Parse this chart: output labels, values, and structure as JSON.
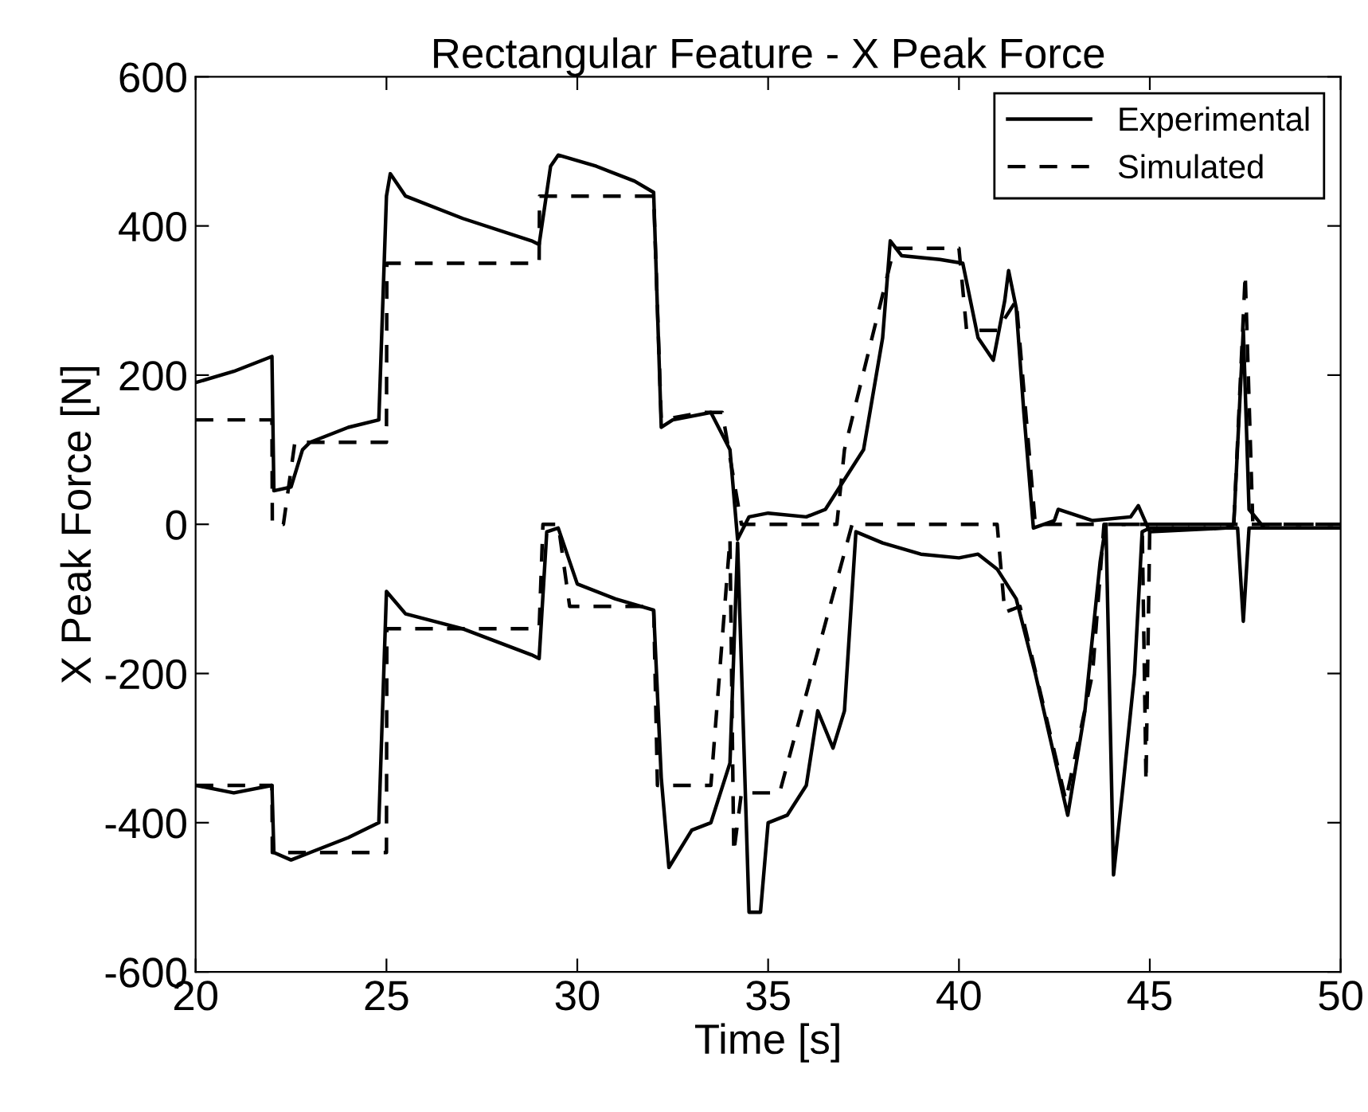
{
  "chart_data": {
    "type": "line",
    "title": "Rectangular Feature - X Peak Force",
    "xlabel": "Time [s]",
    "ylabel": "X Peak Force [N]",
    "xlim": [
      20,
      50
    ],
    "xticks": [
      20,
      25,
      30,
      35,
      40,
      45,
      50
    ],
    "ylim": [
      -600,
      600
    ],
    "yticks": [
      -600,
      -400,
      -200,
      0,
      200,
      400,
      600
    ],
    "grid": false,
    "legend": "top right",
    "marker": "none",
    "series": [
      {
        "name": "Experimental",
        "color": "#000000",
        "line_style": "solid",
        "x": [
          20,
          21,
          22,
          22.05,
          22.5,
          22.8,
          23,
          24,
          24.8,
          25.0,
          25.1,
          25.5,
          27,
          28.8,
          29.0,
          29.3,
          29.5,
          30.5,
          31.5,
          32.0,
          32.2,
          32.5,
          33.5,
          34,
          34.2,
          34.5,
          35,
          36,
          36.5,
          37,
          37.5,
          38,
          38.2,
          38.5,
          39.5,
          40.1,
          40.5,
          40.9,
          41.2,
          41.3,
          41.5,
          41.7,
          41.95,
          42.5,
          42.6,
          43.5,
          44.5,
          44.7,
          45,
          47,
          47.2,
          47.45,
          47.6,
          48,
          50
        ],
        "values": [
          190,
          205,
          225,
          45,
          50,
          100,
          110,
          130,
          140,
          440,
          470,
          440,
          410,
          380,
          375,
          480,
          495,
          480,
          460,
          445,
          130,
          140,
          150,
          100,
          -20,
          10,
          15,
          10,
          20,
          60,
          100,
          250,
          380,
          360,
          355,
          350,
          250,
          220,
          300,
          340,
          290,
          150,
          -5,
          5,
          20,
          5,
          10,
          25,
          -10,
          -5,
          0,
          261,
          20,
          -5,
          -5
        ]
      },
      {
        "color": "#000000",
        "line_style": "solid",
        "x": [
          20,
          21,
          22,
          22.05,
          22.5,
          23,
          24,
          24.8,
          25.0,
          25.5,
          27,
          28.8,
          29.0,
          29.2,
          29.5,
          30,
          31,
          32,
          32.2,
          32.4,
          33,
          33.5,
          34,
          34.2,
          34.5,
          34.8,
          35,
          35.5,
          36,
          36.3,
          36.7,
          37,
          37.3,
          38,
          39,
          40,
          40.5,
          41,
          41.5,
          42,
          42.85,
          43.3,
          43.7,
          43.85,
          44.05,
          44.3,
          44.6,
          44.8,
          45,
          47.3,
          47.45,
          47.6,
          50
        ],
        "values": [
          -350,
          -360,
          -350,
          -440,
          -450,
          -440,
          -420,
          -400,
          -90,
          -120,
          -140,
          -175,
          -180,
          -10,
          -5,
          -80,
          -100,
          -115,
          -340,
          -460,
          -410,
          -400,
          -320,
          -25,
          -520,
          -520,
          -400,
          -390,
          -350,
          -250,
          -300,
          -250,
          -10,
          -25,
          -40,
          -45,
          -40,
          -60,
          -100,
          -200,
          -390,
          -250,
          -50,
          0,
          -470,
          -350,
          -200,
          -10,
          -5,
          -5,
          -130,
          -5,
          -5
        ]
      },
      {
        "name": "Simulated",
        "color": "#000000",
        "line_style": "dashed",
        "x": [
          20,
          22,
          22.01,
          22.3,
          22.6,
          25,
          25.01,
          29,
          29.01,
          32,
          32.2,
          33.3,
          33.8,
          34.3,
          36.8,
          37.0,
          38.3,
          40,
          40.2,
          41,
          41.5,
          42,
          47.2,
          47.5,
          47.7,
          50
        ],
        "values": [
          140,
          140,
          0,
          0,
          110,
          110,
          350,
          350,
          440,
          440,
          140,
          150,
          150,
          0,
          0,
          100,
          370,
          370,
          260,
          260,
          300,
          0,
          0,
          335,
          0,
          0
        ]
      },
      {
        "color": "#000000",
        "line_style": "dashed",
        "x": [
          20,
          22,
          22.01,
          25,
          25.01,
          29,
          29.1,
          29.5,
          29.8,
          32,
          32.1,
          33.5,
          34.0,
          34.1,
          34.3,
          35.3,
          37.2,
          41,
          41.2,
          41.6,
          42.8,
          43.5,
          43.8,
          44.8,
          44.9,
          45,
          50
        ],
        "values": [
          -350,
          -350,
          -440,
          -440,
          -140,
          -140,
          0,
          0,
          -110,
          -110,
          -350,
          -350,
          -20,
          -440,
          -360,
          -360,
          0,
          0,
          -118,
          -110,
          -370,
          -200,
          0,
          0,
          -345,
          0,
          0
        ]
      }
    ]
  }
}
